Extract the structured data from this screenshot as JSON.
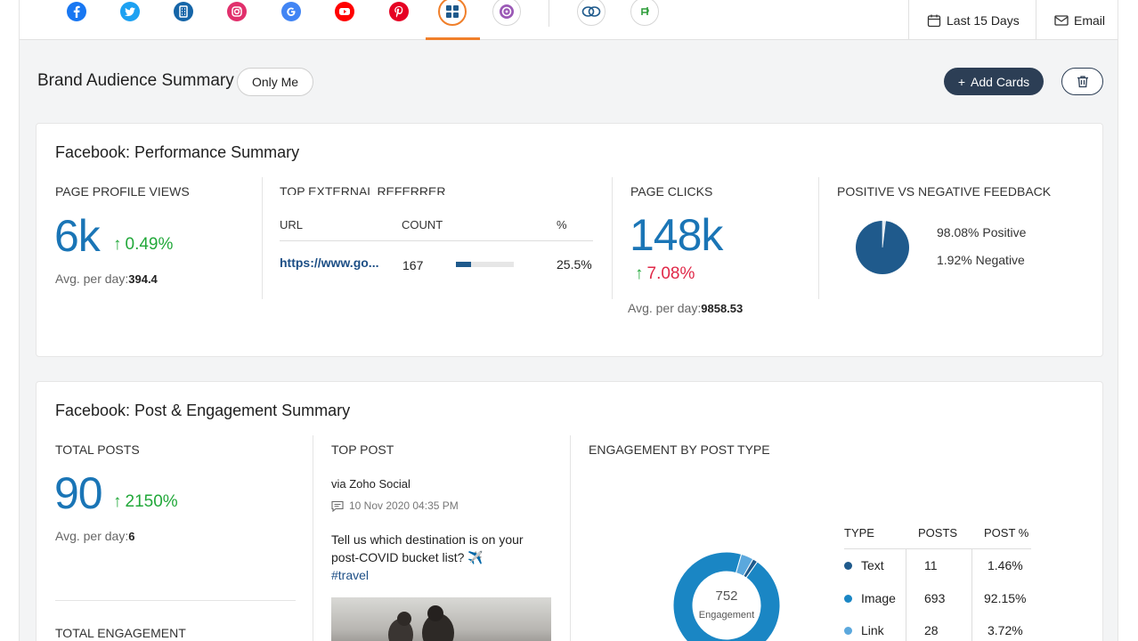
{
  "nav": {
    "icons": [
      "facebook-icon",
      "twitter-icon",
      "google-business-icon",
      "instagram-icon",
      "google-icon",
      "youtube-icon",
      "pinterest-icon",
      "dashboard-icon",
      "zoho-social-icon",
      "link-icon",
      "custom-app-icon"
    ],
    "date_range": "Last 15 Days",
    "email_label": "Email"
  },
  "header": {
    "title": "Brand Audience Summary",
    "visibility": "Only Me",
    "add_cards": "Add Cards"
  },
  "performance": {
    "title": "Facebook: Performance Summary",
    "profile_views": {
      "label": "PAGE PROFILE VIEWS",
      "value": "6k",
      "change": "0.49%",
      "avg_label": "Avg. per day:",
      "avg_value": "394.4"
    },
    "referrer": {
      "label": "TOP EXTERNAL REFERRER",
      "col_url": "URL",
      "col_count": "COUNT",
      "col_pct": "%",
      "row_url": "https://www.go...",
      "row_count": "167",
      "row_pct": "25.5%",
      "row_share": 0.255
    },
    "page_clicks": {
      "label": "PAGE CLICKS",
      "value": "148k",
      "change": "7.08%",
      "avg_label": "Avg. per day:",
      "avg_value": "9858.53"
    },
    "feedback": {
      "label": "POSITIVE VS NEGATIVE FEEDBACK",
      "positive": "98.08%  Positive",
      "negative": "1.92%  Negative",
      "positive_value": 98.08,
      "negative_value": 1.92
    }
  },
  "engagement": {
    "title": "Facebook: Post & Engagement Summary",
    "total_posts": {
      "label": "TOTAL POSTS",
      "value": "90",
      "change": "2150%",
      "avg_label": "Avg. per day:",
      "avg_value": "6"
    },
    "total_engagement_label": "TOTAL ENGAGEMENT",
    "top_post": {
      "label": "TOP POST",
      "via": "via Zoho Social",
      "datetime": "10 Nov 2020 04:35 PM",
      "text": "Tell us which destination is on your post-COVID bucket list? ✈️",
      "hashtag": "#travel"
    },
    "by_type": {
      "label": "ENGAGEMENT BY POST TYPE",
      "donut_value": "752",
      "donut_label": "Engagement",
      "headers": [
        "TYPE",
        "POSTS",
        "POST %"
      ],
      "rows": [
        {
          "type": "Text",
          "posts": "11",
          "pct": "1.46%",
          "color": "#1f5a8c"
        },
        {
          "type": "Image",
          "posts": "693",
          "pct": "92.15%",
          "color": "#1a86c4"
        },
        {
          "type": "Link",
          "posts": "28",
          "pct": "3.72%",
          "color": "#5ba8dd"
        }
      ]
    }
  }
}
